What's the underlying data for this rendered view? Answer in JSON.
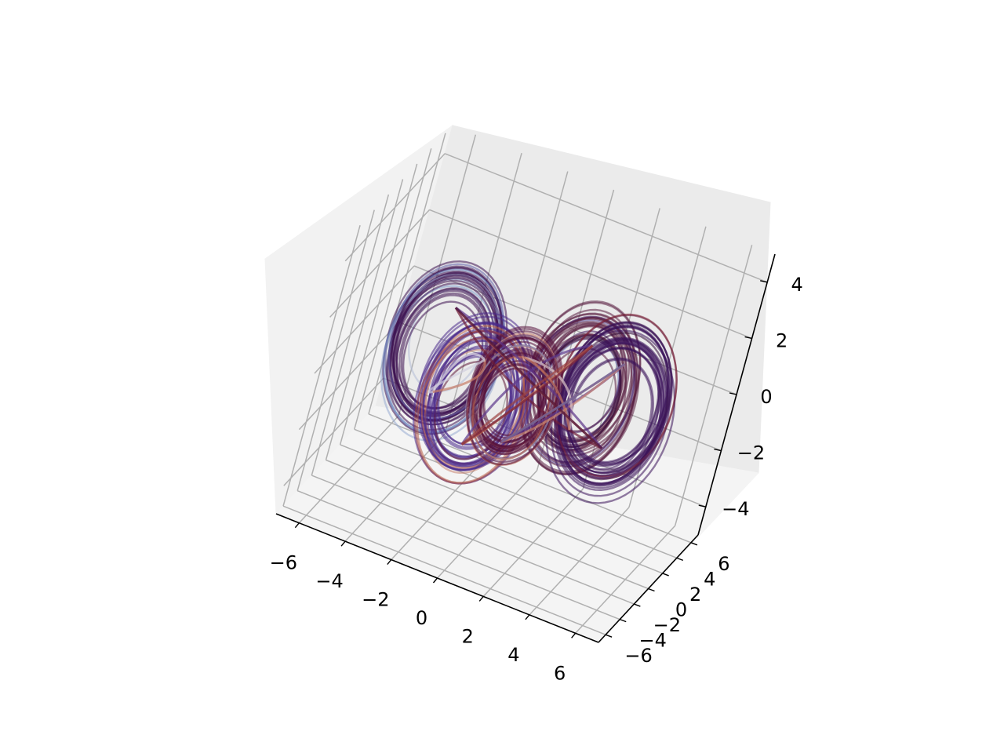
{
  "chart_data": {
    "type": "line",
    "projection": "3d",
    "title": "",
    "xlabel": "",
    "ylabel": "",
    "zlabel": "",
    "xlim": [
      -7,
      7
    ],
    "ylim": [
      -7,
      7
    ],
    "zlim": [
      -5,
      5
    ],
    "x_ticks": [
      -6,
      -4,
      -2,
      0,
      2,
      4,
      6
    ],
    "y_ticks": [
      -6,
      -4,
      -2,
      0,
      2,
      4,
      6
    ],
    "z_ticks": [
      -4,
      -2,
      0,
      2,
      4
    ],
    "x_tick_labels": [
      "−6",
      "−4",
      "−2",
      "0",
      "2",
      "4",
      "6"
    ],
    "y_tick_labels": [
      "−6",
      "−4",
      "−2",
      "0",
      "2",
      "4",
      "6"
    ],
    "z_tick_labels": [
      "−4",
      "−2",
      "0",
      "2",
      "4"
    ],
    "grid": true,
    "legend": "none",
    "colormap": "twilight",
    "colormap_stops": [
      "#e2d9e2",
      "#6a8fc6",
      "#5b2e86",
      "#2f0b3a",
      "#7a1f38",
      "#c0674a",
      "#e2d9e2"
    ],
    "series": [
      {
        "lobe_center": [
          -3.0,
          -2.8,
          1.0
        ],
        "radius": 2.1,
        "color": "#3d1151"
      },
      {
        "lobe_center": [
          2.8,
          -3.0,
          1.6
        ],
        "radius": 2.0,
        "color": "#5a1f42"
      },
      {
        "lobe_center": [
          3.2,
          2.4,
          -0.4
        ],
        "radius": 2.2,
        "color": "#3a135a"
      },
      {
        "lobe_center": [
          -2.4,
          2.8,
          -2.2
        ],
        "radius": 2.0,
        "color": "#4a2a8a"
      },
      {
        "lobe_center": [
          -0.4,
          0.4,
          -0.8
        ],
        "radius": 1.6,
        "color": "#55103a"
      }
    ]
  }
}
